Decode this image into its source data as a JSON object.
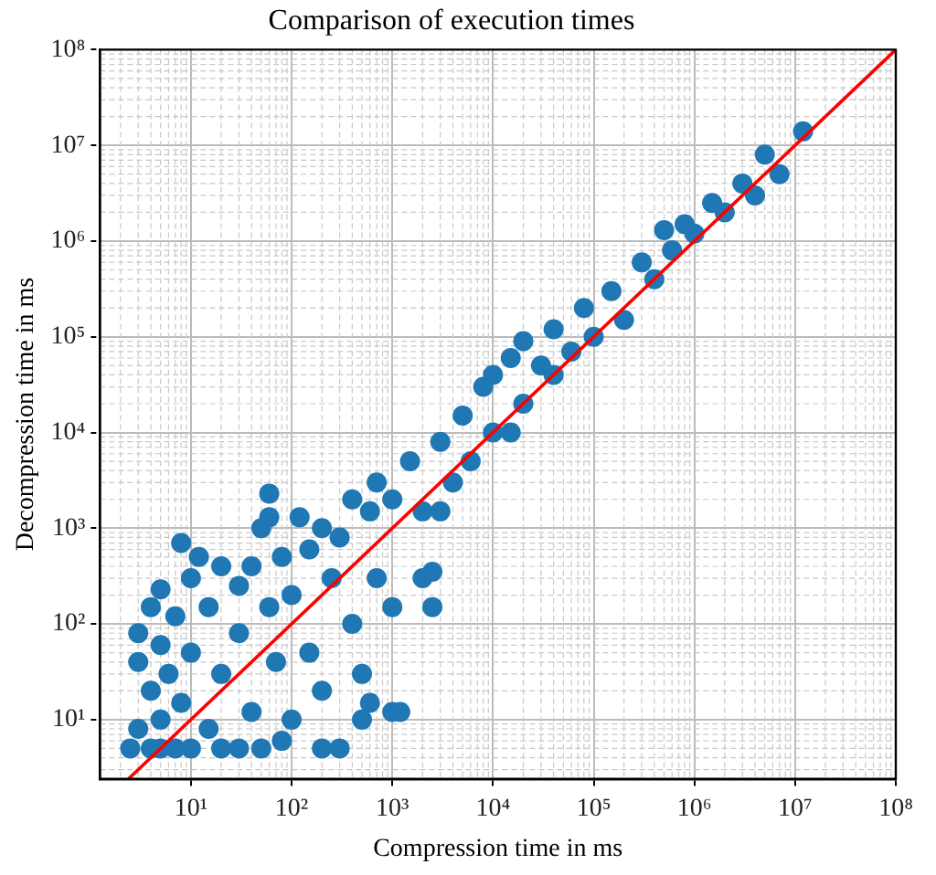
{
  "chart_data": {
    "type": "scatter",
    "title": "Comparison of execution times",
    "xlabel": "Compression time in ms",
    "ylabel": "Decompression time in ms",
    "log": "xy",
    "grid": true,
    "marker": "circle",
    "legend": false,
    "xlim": [
      1.25,
      100000000
    ],
    "ylim": [
      2.4,
      100000000
    ],
    "xticks": [
      {
        "value": 10,
        "label": "10¹"
      },
      {
        "value": 100,
        "label": "10²"
      },
      {
        "value": 1000,
        "label": "10³"
      },
      {
        "value": 10000,
        "label": "10⁴"
      },
      {
        "value": 100000,
        "label": "10⁵"
      },
      {
        "value": 1000000,
        "label": "10⁶"
      },
      {
        "value": 10000000,
        "label": "10⁷"
      },
      {
        "value": 100000000,
        "label": "10⁸"
      }
    ],
    "yticks": [
      {
        "value": 10,
        "label": "10¹"
      },
      {
        "value": 100,
        "label": "10²"
      },
      {
        "value": 1000,
        "label": "10³"
      },
      {
        "value": 10000,
        "label": "10⁴"
      },
      {
        "value": 100000,
        "label": "10⁵"
      },
      {
        "value": 1000000,
        "label": "10⁶"
      },
      {
        "value": 10000000,
        "label": "10⁷"
      },
      {
        "value": 100000000,
        "label": "10⁸"
      }
    ],
    "series": [
      {
        "type": "scatter",
        "color": "#1f77b4",
        "x": [
          2.5,
          3,
          3,
          3,
          4,
          4,
          4,
          5,
          5,
          5,
          5,
          6,
          7,
          7,
          8,
          8,
          10,
          10,
          10,
          12,
          15,
          15,
          20,
          20,
          20,
          30,
          30,
          30,
          40,
          40,
          50,
          50,
          60,
          60,
          60,
          70,
          80,
          80,
          100,
          100,
          120,
          150,
          150,
          200,
          200,
          200,
          250,
          300,
          300,
          400,
          400,
          500,
          500,
          600,
          600,
          700,
          700,
          1000,
          1000,
          1200,
          1000,
          1500,
          2000,
          2000,
          2500,
          2500,
          3000,
          3000,
          4000,
          5000,
          6000,
          8000,
          10000,
          10000,
          15000,
          15000,
          20000,
          20000,
          30000,
          40000,
          40000,
          60000,
          80000,
          100000,
          150000,
          200000,
          300000,
          400000,
          500000,
          600000,
          800000,
          1000000,
          1500000,
          2000000,
          3000000,
          4000000,
          5000000,
          7000000,
          12000000
        ],
        "values": [
          5,
          40,
          8,
          80,
          5,
          20,
          150,
          5,
          10,
          60,
          230,
          30,
          5,
          120,
          700,
          15,
          5,
          50,
          300,
          500,
          8,
          150,
          5,
          30,
          400,
          5,
          80,
          250,
          12,
          400,
          5,
          1000,
          2300,
          1300,
          150,
          40,
          6,
          500,
          10,
          200,
          1300,
          600,
          50,
          5,
          1000,
          20,
          300,
          5,
          800,
          100,
          2000,
          10,
          30,
          15,
          1500,
          300,
          3000,
          12,
          150,
          12,
          2000,
          5000,
          1500,
          300,
          350,
          150,
          8000,
          1500,
          3000,
          15000,
          5000,
          30000,
          10000,
          40000,
          10000,
          60000,
          20000,
          90000,
          50000,
          40000,
          120000,
          70000,
          200000,
          100000,
          300000,
          150000,
          600000,
          400000,
          1300000,
          800000,
          1500000,
          1200000,
          2500000,
          2000000,
          4000000,
          3000000,
          8000000,
          5000000,
          14000000
        ]
      },
      {
        "type": "line",
        "marker": "none",
        "color": "#ff0000",
        "x": [
          2.4,
          100000000
        ],
        "values": [
          2.4,
          100000000
        ]
      }
    ]
  }
}
